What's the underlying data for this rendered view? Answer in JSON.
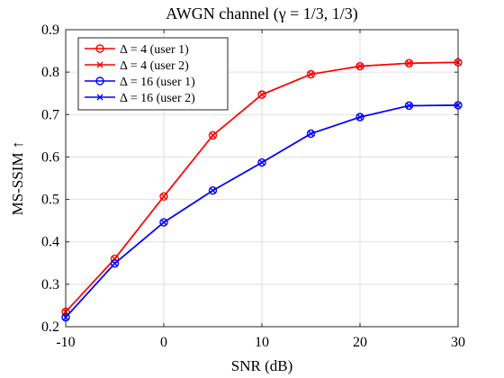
{
  "chart_data": {
    "type": "line",
    "title": "AWGN channel (γ = 1/3, 1/3)",
    "xlabel": "SNR (dB)",
    "ylabel": "MS-SSIM ↑",
    "xlim": [
      -10,
      30
    ],
    "ylim": [
      0.2,
      0.9
    ],
    "xticks": [
      -10,
      0,
      10,
      20,
      30
    ],
    "yticks": [
      0.2,
      0.3,
      0.4,
      0.5,
      0.6,
      0.7,
      0.8,
      0.9
    ],
    "grid": true,
    "legend_position": "top-left",
    "x": [
      -10,
      -5,
      0,
      5,
      10,
      15,
      20,
      25,
      30
    ],
    "series": [
      {
        "name": "Δ = 4 (user 1)",
        "color": "#ff0000",
        "marker": "circle",
        "values": [
          0.235,
          0.36,
          0.507,
          0.651,
          0.747,
          0.795,
          0.814,
          0.821,
          0.823
        ]
      },
      {
        "name": "Δ = 4  (user 2)",
        "color": "#ff0000",
        "marker": "x",
        "values": [
          0.235,
          0.36,
          0.507,
          0.651,
          0.747,
          0.795,
          0.814,
          0.821,
          0.823
        ]
      },
      {
        "name": "Δ = 16 (user 1)",
        "color": "#0000ff",
        "marker": "circle",
        "values": [
          0.222,
          0.349,
          0.446,
          0.521,
          0.587,
          0.655,
          0.694,
          0.721,
          0.722
        ]
      },
      {
        "name": "Δ = 16 (user 2)",
        "color": "#0000ff",
        "marker": "x",
        "values": [
          0.222,
          0.349,
          0.446,
          0.521,
          0.587,
          0.655,
          0.694,
          0.721,
          0.722
        ]
      }
    ]
  }
}
